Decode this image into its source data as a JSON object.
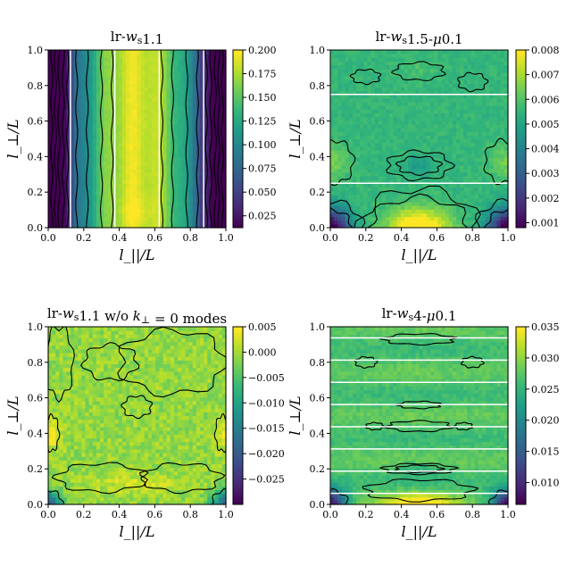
{
  "chart_data": [
    {
      "type": "heatmap",
      "title": "lr-w_s1.1",
      "title_parts": [
        "lr-",
        "w",
        "s",
        "1.1"
      ],
      "xlabel": "l_||/L",
      "ylabel": "l_⊥/L",
      "xlim": [
        0,
        1
      ],
      "ylim": [
        0,
        1
      ],
      "xticks": [
        "0.0",
        "0.2",
        "0.4",
        "0.6",
        "0.8",
        "1.0"
      ],
      "yticks": [
        "0.0",
        "0.2",
        "0.4",
        "0.6",
        "0.8",
        "1.0"
      ],
      "colorbar": {
        "min": 0.0125,
        "max": 0.2,
        "ticks": [
          "0.025",
          "0.050",
          "0.075",
          "0.100",
          "0.125",
          "0.150",
          "0.175",
          "0.200"
        ],
        "tick_values": [
          0.025,
          0.05,
          0.075,
          0.1,
          0.125,
          0.15,
          0.175,
          0.2
        ]
      },
      "pattern": "vertical_bands",
      "white_lines": {
        "orientation": "vertical",
        "positions": [
          0.125,
          0.375,
          0.625,
          0.875
        ]
      }
    },
    {
      "type": "heatmap",
      "title": "lr-w_s1.5-μ0.1",
      "title_parts": [
        "lr-",
        "w",
        "s",
        "1.5-",
        "μ",
        "0.1"
      ],
      "xlabel": "l_||/L",
      "ylabel": "l_⊥/L",
      "xlim": [
        0,
        1
      ],
      "ylim": [
        0,
        1
      ],
      "xticks": [
        "0.0",
        "0.2",
        "0.4",
        "0.6",
        "0.8",
        "1.0"
      ],
      "yticks": [
        "0.0",
        "0.2",
        "0.4",
        "0.6",
        "0.8",
        "1.0"
      ],
      "colorbar": {
        "min": 0.0008,
        "max": 0.008,
        "ticks": [
          "0.001",
          "0.002",
          "0.003",
          "0.004",
          "0.005",
          "0.006",
          "0.007",
          "0.008"
        ],
        "tick_values": [
          0.001,
          0.002,
          0.003,
          0.004,
          0.005,
          0.006,
          0.007,
          0.008
        ]
      },
      "pattern": "blobs_bottom",
      "white_lines": {
        "orientation": "horizontal",
        "positions": [
          0.25,
          0.75
        ]
      }
    },
    {
      "type": "heatmap",
      "title": "lr-w_s1.1 w/o k_⊥ = 0 modes",
      "title_parts": [
        "lr-",
        "w",
        "s",
        "1.1 w/o ",
        "k",
        "⊥",
        " = 0 modes"
      ],
      "xlabel": "l_||/L",
      "ylabel": "l_⊥/L",
      "xlim": [
        0,
        1
      ],
      "ylim": [
        0,
        1
      ],
      "xticks": [
        "0.0",
        "0.2",
        "0.4",
        "0.6",
        "0.8",
        "1.0"
      ],
      "yticks": [
        "0.0",
        "0.2",
        "0.4",
        "0.6",
        "0.8",
        "1.0"
      ],
      "colorbar": {
        "min": -0.03,
        "max": 0.005,
        "ticks": [
          "0.005",
          "0.000",
          "−0.005",
          "−0.010",
          "−0.015",
          "−0.020",
          "−0.025"
        ],
        "tick_values": [
          0.005,
          0.0,
          -0.005,
          -0.01,
          -0.015,
          -0.02,
          -0.025
        ]
      },
      "pattern": "noisy_flat",
      "white_lines": {
        "orientation": "none",
        "positions": []
      }
    },
    {
      "type": "heatmap",
      "title": "lr-w_s4-μ0.1",
      "title_parts": [
        "lr-",
        "w",
        "s",
        "4-",
        "μ",
        "0.1"
      ],
      "xlabel": "l_||/L",
      "ylabel": "l_⊥/L",
      "xlim": [
        0,
        1
      ],
      "ylim": [
        0,
        1
      ],
      "xticks": [
        "0.0",
        "0.2",
        "0.4",
        "0.6",
        "0.8",
        "1.0"
      ],
      "yticks": [
        "0.0",
        "0.2",
        "0.4",
        "0.6",
        "0.8",
        "1.0"
      ],
      "colorbar": {
        "min": 0.0065,
        "max": 0.035,
        "ticks": [
          "0.010",
          "0.015",
          "0.020",
          "0.025",
          "0.030",
          "0.035"
        ],
        "tick_values": [
          0.01,
          0.015,
          0.02,
          0.025,
          0.03,
          0.035
        ]
      },
      "pattern": "stripes_many",
      "white_lines": {
        "orientation": "horizontal",
        "positions": [
          0.0625,
          0.1875,
          0.3125,
          0.4375,
          0.5625,
          0.6875,
          0.8125,
          0.9375
        ]
      }
    }
  ]
}
